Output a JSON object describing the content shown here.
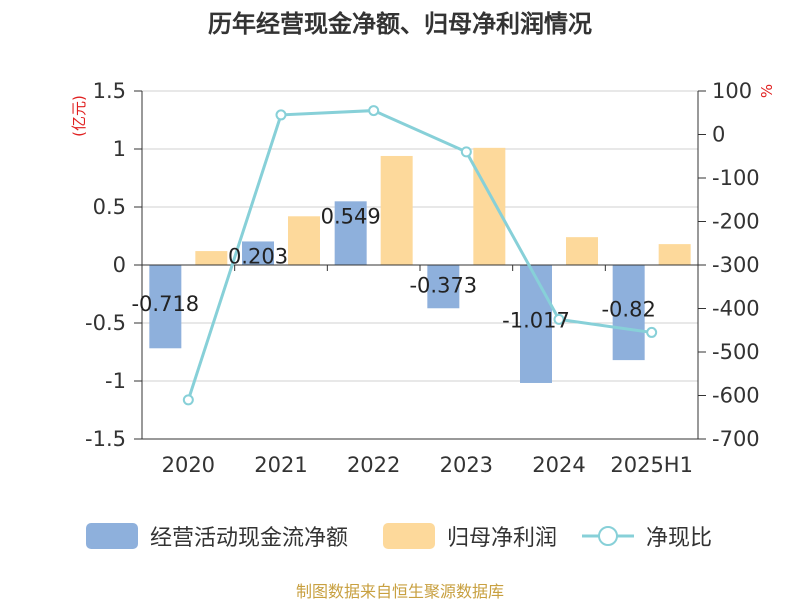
{
  "title": "历年经营现金净额、归母净利润情况",
  "source": "制图数据来自恒生聚源数据库",
  "colors": {
    "cash": "#8eb0dc",
    "profit": "#fdd99b",
    "ratio": "#87d0d8",
    "unit": "#e02020"
  },
  "chart_data": {
    "type": "bar",
    "categories": [
      "2020",
      "2021",
      "2022",
      "2023",
      "2024",
      "2025H1"
    ],
    "left_axis": {
      "unit": "(亿元)",
      "ylim": [
        -1.5,
        1.5
      ],
      "ticks": [
        "1.5",
        "1",
        "0.5",
        "0",
        "-0.5",
        "-1",
        "-1.5"
      ]
    },
    "right_axis": {
      "unit": "%",
      "ylim": [
        -700,
        100
      ],
      "ticks": [
        "100",
        "0",
        "-100",
        "-200",
        "-300",
        "-400",
        "-500",
        "-600",
        "-700"
      ]
    },
    "grid": true,
    "legend_position": "bottom",
    "series": [
      {
        "name": "经营活动现金流净额",
        "type": "bar",
        "axis": "left",
        "values": [
          -0.718,
          0.203,
          0.549,
          -0.373,
          -1.017,
          -0.82
        ],
        "labels": [
          "-0.718",
          "0.203",
          "0.549",
          "-0.373",
          "-1.017",
          "-0.82"
        ]
      },
      {
        "name": "归母净利润",
        "type": "bar",
        "axis": "left",
        "values": [
          0.12,
          0.42,
          0.94,
          1.01,
          0.24,
          0.18
        ]
      },
      {
        "name": "净现比",
        "type": "line",
        "axis": "right",
        "values": [
          -610,
          45,
          55,
          -40,
          -425,
          -455
        ]
      }
    ]
  }
}
